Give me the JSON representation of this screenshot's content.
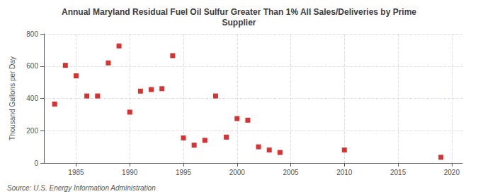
{
  "chart_data": {
    "type": "scatter",
    "title": "Annual Maryland Residual Fuel Oil Sulfur Greater Than 1% All Sales/Deliveries by Prime\nSupplier",
    "ylabel": "Thousand Gallons per Day",
    "annotations": [
      "Source: U.S. Energy Information Administration"
    ],
    "x": [
      1983,
      1984,
      1985,
      1986,
      1987,
      1988,
      1989,
      1990,
      1991,
      1992,
      1993,
      1994,
      1995,
      1996,
      1997,
      1998,
      1999,
      2000,
      2001,
      2002,
      2003,
      2004,
      2010,
      2019
    ],
    "values": [
      365,
      605,
      540,
      415,
      415,
      620,
      725,
      315,
      445,
      455,
      460,
      665,
      155,
      110,
      140,
      415,
      160,
      275,
      265,
      100,
      80,
      65,
      80,
      35
    ],
    "color": "#cc0000",
    "marker": "square",
    "xlim": [
      1982,
      2021
    ],
    "ylim": [
      0,
      800
    ],
    "xticks": [
      1985,
      1990,
      1995,
      2000,
      2005,
      2010,
      2015,
      2020
    ],
    "yticks": [
      0,
      200,
      400,
      600,
      800
    ],
    "grid": true
  }
}
